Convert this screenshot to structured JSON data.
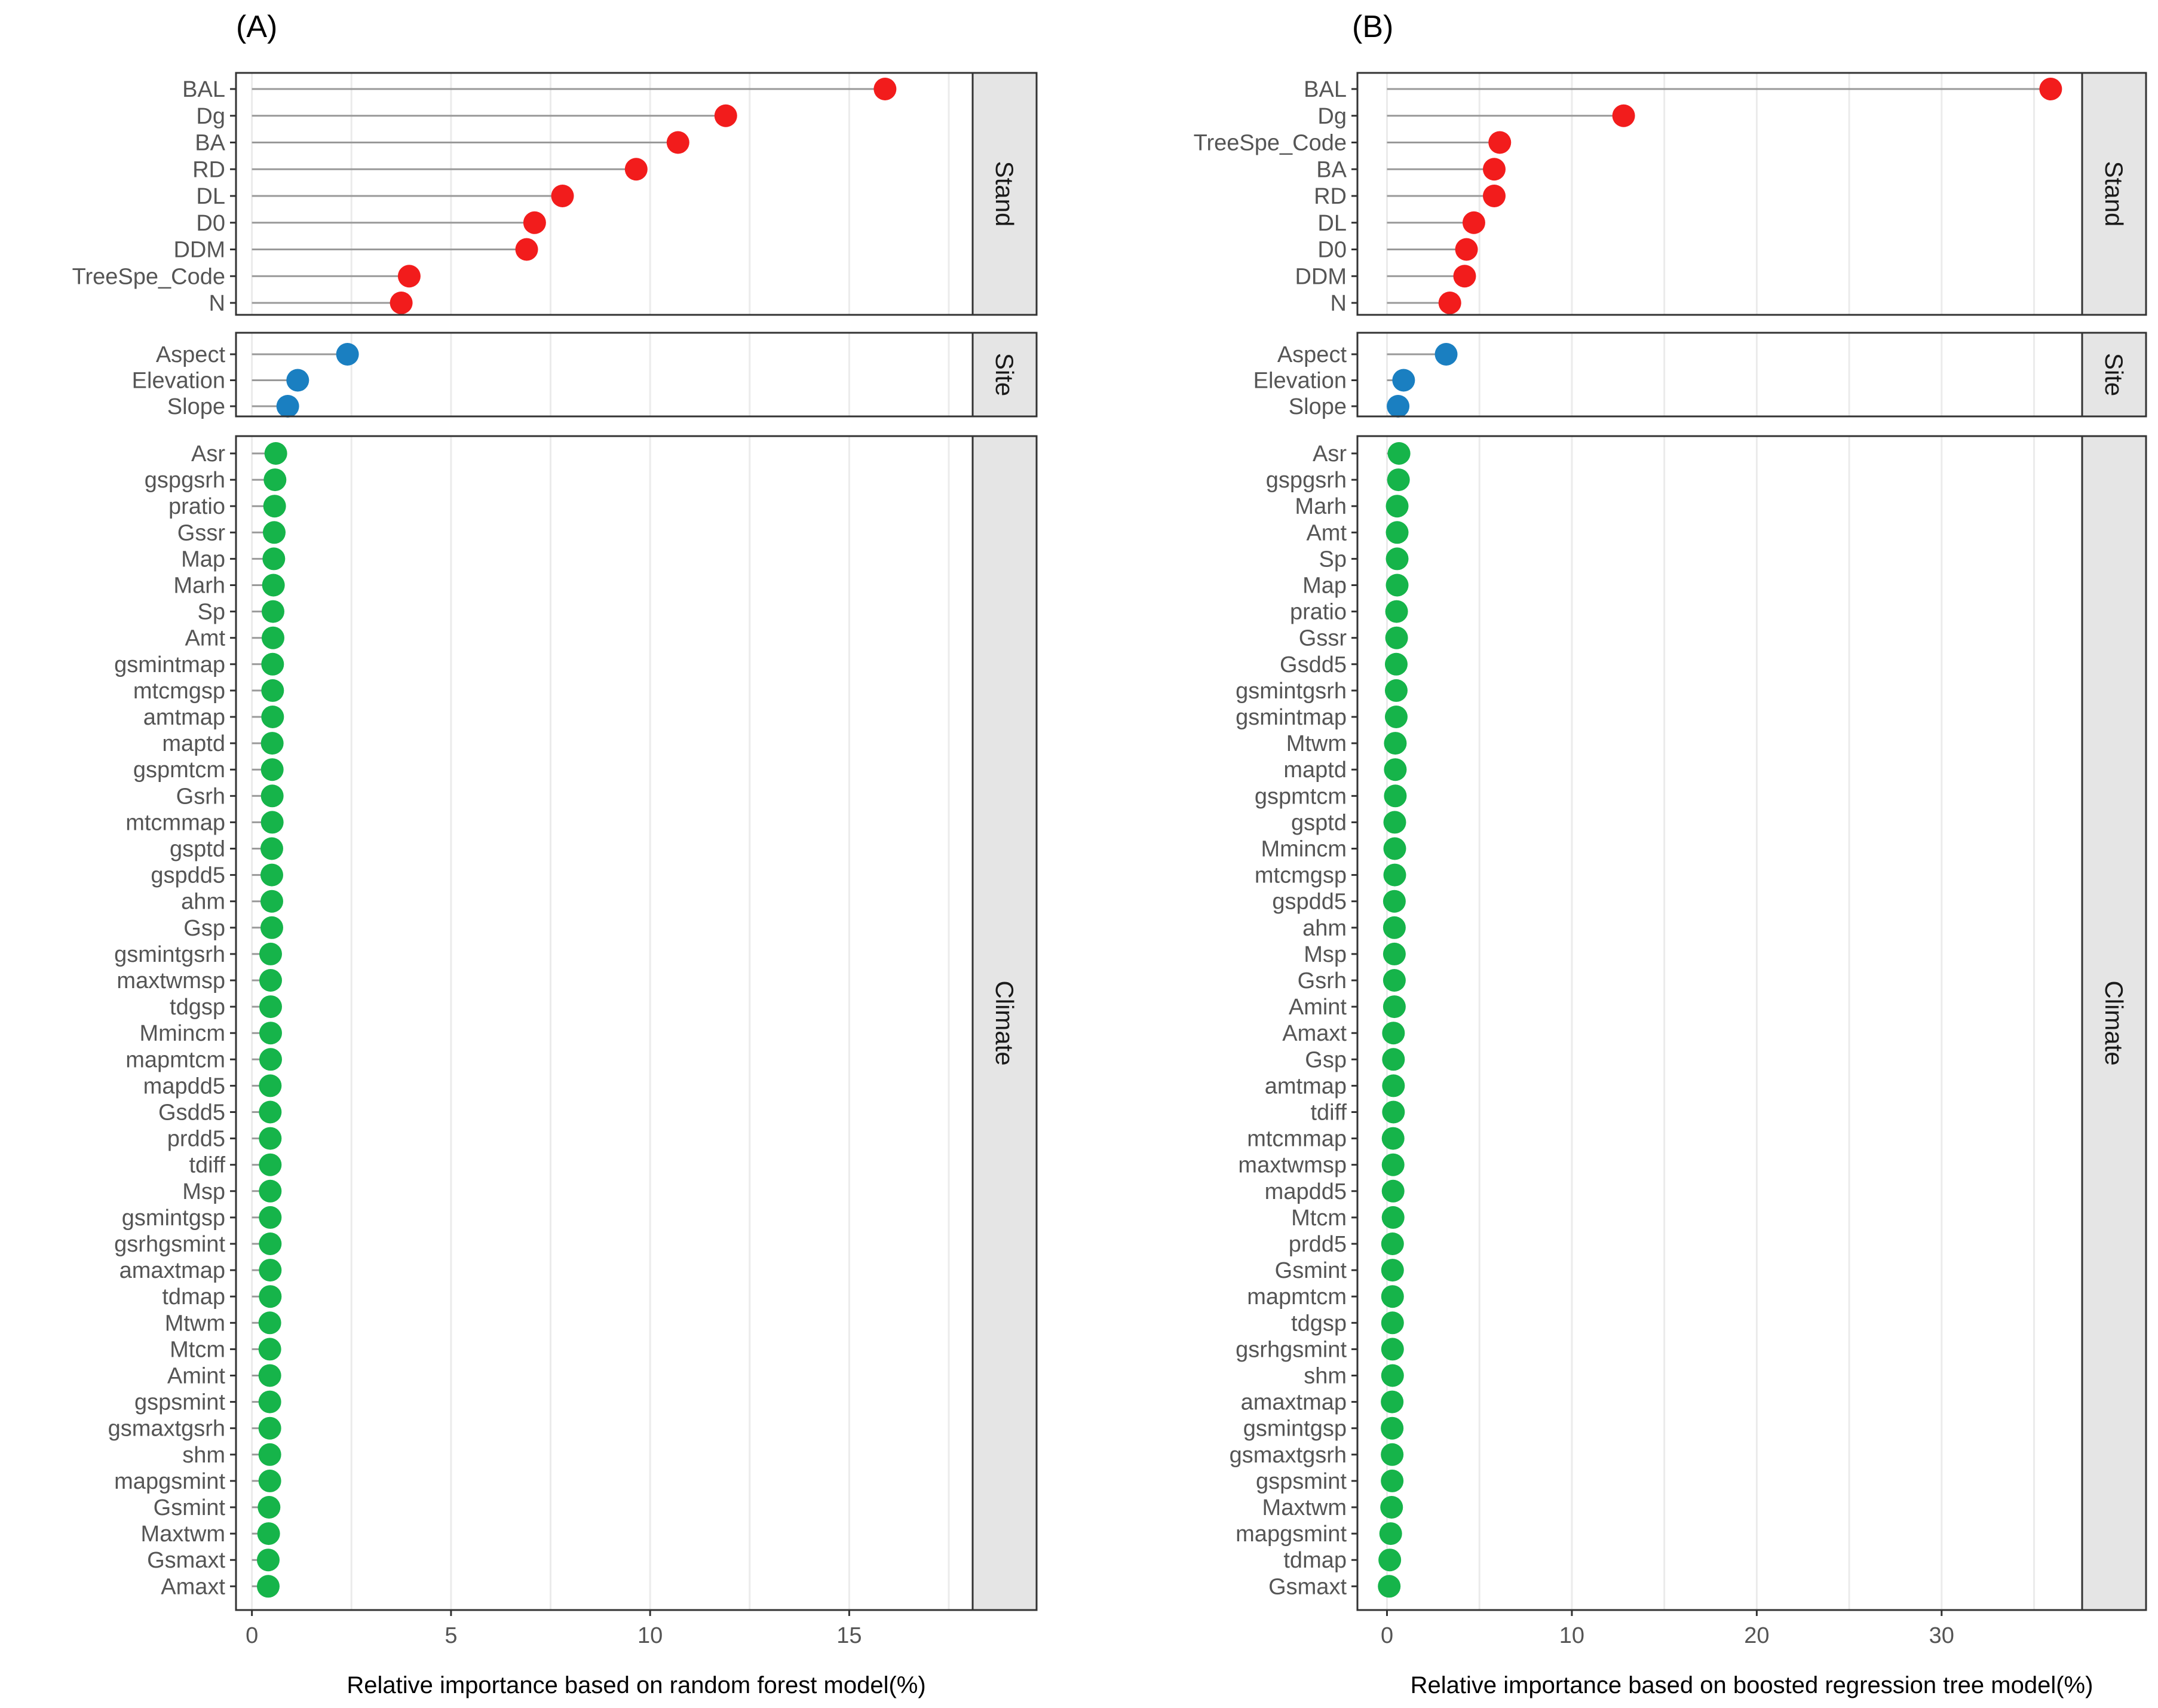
{
  "colors": {
    "Stand": "#f21c1c",
    "Site": "#1a7fc1",
    "Climate": "#16b44a"
  },
  "chart_data": [
    {
      "type": "lollipop",
      "title": "(A)",
      "xlabel": "Relative importance based on random forest model(%)",
      "xlim": [
        -0.4,
        18.1
      ],
      "xticks": [
        0,
        5,
        10,
        15
      ],
      "facets": [
        {
          "name": "Stand",
          "labels": [
            "BAL",
            "Dg",
            "BA",
            "RD",
            "DL",
            "D0",
            "DDM",
            "TreeSpe_Code",
            "N"
          ],
          "values": [
            15.9,
            11.9,
            10.7,
            9.65,
            7.8,
            7.1,
            6.9,
            3.95,
            3.75
          ]
        },
        {
          "name": "Site",
          "labels": [
            "Aspect",
            "Elevation",
            "Slope"
          ],
          "values": [
            2.4,
            1.15,
            0.9
          ]
        },
        {
          "name": "Climate",
          "labels": [
            "Asr",
            "gspgsrh",
            "pratio",
            "Gssr",
            "Map",
            "Marh",
            "Sp",
            "Amt",
            "gsmintmap",
            "mtcmgsp",
            "amtmap",
            "maptd",
            "gspmtcm",
            "Gsrh",
            "mtcmmap",
            "gsptd",
            "gspdd5",
            "ahm",
            "Gsp",
            "gsmintgsrh",
            "maxtwmsp",
            "tdgsp",
            "Mmincm",
            "mapmtcm",
            "mapdd5",
            "Gsdd5",
            "prdd5",
            "tdiff",
            "Msp",
            "gsmintgsp",
            "gsrhgsmint",
            "amaxtmap",
            "tdmap",
            "Mtwm",
            "Mtcm",
            "Amint",
            "gspsmint",
            "gsmaxtgsrh",
            "shm",
            "mapgsmint",
            "Gsmint",
            "Maxtwm",
            "Gsmaxt",
            "Amaxt"
          ],
          "values": [
            0.6,
            0.58,
            0.57,
            0.56,
            0.55,
            0.54,
            0.53,
            0.53,
            0.52,
            0.52,
            0.52,
            0.51,
            0.51,
            0.51,
            0.51,
            0.5,
            0.5,
            0.5,
            0.5,
            0.47,
            0.47,
            0.47,
            0.47,
            0.47,
            0.46,
            0.46,
            0.46,
            0.46,
            0.46,
            0.46,
            0.46,
            0.46,
            0.46,
            0.45,
            0.45,
            0.45,
            0.45,
            0.45,
            0.45,
            0.45,
            0.43,
            0.42,
            0.41,
            0.41
          ]
        }
      ]
    },
    {
      "type": "lollipop",
      "title": "(B)",
      "xlabel": "Relative importance based on boosted regression tree model(%)",
      "xlim": [
        -1.6,
        37.6
      ],
      "xticks": [
        0,
        10,
        20,
        30
      ],
      "facets": [
        {
          "name": "Stand",
          "labels": [
            "BAL",
            "Dg",
            "TreeSpe_Code",
            "BA",
            "RD",
            "DL",
            "D0",
            "DDM",
            "N"
          ],
          "values": [
            35.9,
            12.8,
            6.1,
            5.8,
            5.8,
            4.7,
            4.3,
            4.2,
            3.4
          ]
        },
        {
          "name": "Site",
          "labels": [
            "Aspect",
            "Elevation",
            "Slope"
          ],
          "values": [
            3.2,
            0.9,
            0.6
          ]
        },
        {
          "name": "Climate",
          "labels": [
            "Asr",
            "gspgsrh",
            "Marh",
            "Amt",
            "Sp",
            "Map",
            "pratio",
            "Gssr",
            "Gsdd5",
            "gsmintgsrh",
            "gsmintmap",
            "Mtwm",
            "maptd",
            "gspmtcm",
            "gsptd",
            "Mmincm",
            "mtcmgsp",
            "gspdd5",
            "ahm",
            "Msp",
            "Gsrh",
            "Amint",
            "Amaxt",
            "Gsp",
            "amtmap",
            "tdiff",
            "mtcmmap",
            "maxtwmsp",
            "mapdd5",
            "Mtcm",
            "prdd5",
            "Gsmint",
            "mapmtcm",
            "tdgsp",
            "gsrhgsmint",
            "shm",
            "amaxtmap",
            "gsmintgsp",
            "gsmaxtgsrh",
            "gspsmint",
            "Maxtwm",
            "mapgsmint",
            "tdmap",
            "Gsmaxt"
          ],
          "values": [
            0.65,
            0.62,
            0.55,
            0.55,
            0.55,
            0.55,
            0.52,
            0.52,
            0.5,
            0.5,
            0.5,
            0.45,
            0.45,
            0.45,
            0.42,
            0.42,
            0.42,
            0.4,
            0.4,
            0.4,
            0.4,
            0.4,
            0.35,
            0.35,
            0.35,
            0.35,
            0.33,
            0.33,
            0.33,
            0.33,
            0.3,
            0.3,
            0.3,
            0.3,
            0.3,
            0.3,
            0.28,
            0.28,
            0.28,
            0.28,
            0.25,
            0.2,
            0.15,
            0.12
          ]
        }
      ]
    }
  ]
}
